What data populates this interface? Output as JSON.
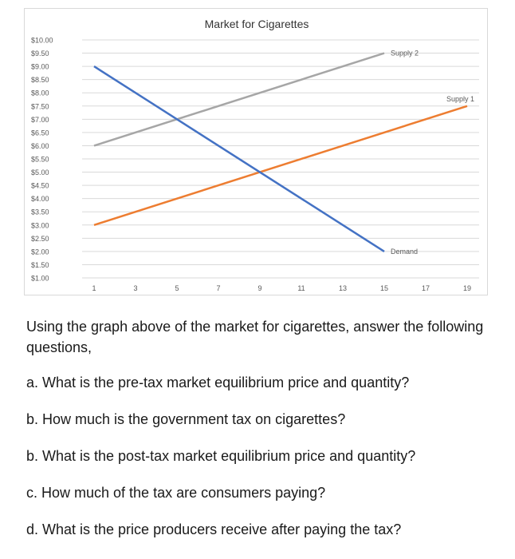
{
  "chart_data": {
    "type": "line",
    "title": "Market for Cigarettes",
    "xlabel": "",
    "ylabel": "",
    "x_ticks": [
      1,
      3,
      5,
      7,
      9,
      11,
      13,
      15,
      17,
      19
    ],
    "y_ticks": [
      "$10.00",
      "$9.50",
      "$9.00",
      "$8.50",
      "$8.00",
      "$7.50",
      "$7.00",
      "$6.50",
      "$6.00",
      "$5.50",
      "$5.00",
      "$4.50",
      "$4.00",
      "$3.50",
      "$3.00",
      "$2.50",
      "$2.00",
      "$1.50",
      "$1.00"
    ],
    "ylim": [
      1.0,
      10.0
    ],
    "xlim": [
      1,
      19
    ],
    "grid": true,
    "series": [
      {
        "name": "Supply 2",
        "color": "#a6a6a6",
        "x": [
          1,
          15
        ],
        "y": [
          6.0,
          9.5
        ]
      },
      {
        "name": "Supply 1",
        "color": "#ed7d31",
        "x": [
          1,
          19
        ],
        "y": [
          3.0,
          7.5
        ]
      },
      {
        "name": "Demand",
        "color": "#4472c4",
        "x": [
          1,
          15
        ],
        "y": [
          9.0,
          2.0
        ]
      }
    ]
  },
  "text": {
    "intro": "Using the graph above of the market for cigarettes, answer the following questions,",
    "questions": [
      "a. What is the pre-tax market equilibrium price and quantity?",
      "b. How much is the government tax on cigarettes?",
      "b. What is the post-tax market equilibrium price and quantity?",
      "c. How much of the tax are consumers paying?",
      "d. What is the price producers receive after paying the tax?"
    ]
  }
}
